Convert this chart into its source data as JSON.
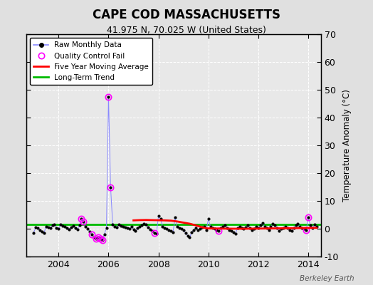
{
  "title": "CAPE COD MASSACHUSETTS",
  "subtitle": "41.975 N, 70.025 W (United States)",
  "ylabel_right": "Temperature Anomaly (°C)",
  "source_label": "Berkeley Earth",
  "xlim": [
    2002.7,
    2014.5
  ],
  "ylim": [
    -10,
    70
  ],
  "yticks": [
    -10,
    0,
    10,
    20,
    30,
    40,
    50,
    60,
    70
  ],
  "xticks": [
    2004,
    2006,
    2008,
    2010,
    2012,
    2014
  ],
  "bg_color": "#e0e0e0",
  "plot_bg": "#e8e8e8",
  "raw_color": "#8888ff",
  "raw_marker_color": "#000000",
  "qc_color": "#ff00ff",
  "moving_avg_color": "#ff0000",
  "trend_color": "#00bb00",
  "raw_monthly": [
    [
      2003.0,
      -1.5
    ],
    [
      2003.083,
      0.5
    ],
    [
      2003.167,
      0.3
    ],
    [
      2003.25,
      -0.5
    ],
    [
      2003.333,
      -1.0
    ],
    [
      2003.417,
      -1.5
    ],
    [
      2003.5,
      0.8
    ],
    [
      2003.583,
      0.5
    ],
    [
      2003.667,
      0.3
    ],
    [
      2003.75,
      1.2
    ],
    [
      2003.833,
      1.5
    ],
    [
      2003.917,
      0.3
    ],
    [
      2004.0,
      0.0
    ],
    [
      2004.083,
      1.5
    ],
    [
      2004.167,
      1.0
    ],
    [
      2004.25,
      0.8
    ],
    [
      2004.333,
      0.3
    ],
    [
      2004.417,
      -0.3
    ],
    [
      2004.5,
      0.5
    ],
    [
      2004.583,
      1.0
    ],
    [
      2004.667,
      0.3
    ],
    [
      2004.75,
      -0.3
    ],
    [
      2004.833,
      1.2
    ],
    [
      2004.917,
      3.5
    ],
    [
      2005.0,
      2.5
    ],
    [
      2005.083,
      0.8
    ],
    [
      2005.167,
      0.0
    ],
    [
      2005.25,
      -1.0
    ],
    [
      2005.333,
      -2.0
    ],
    [
      2005.417,
      -3.0
    ],
    [
      2005.5,
      -3.5
    ],
    [
      2005.583,
      -3.0
    ],
    [
      2005.667,
      -3.5
    ],
    [
      2005.75,
      -4.0
    ],
    [
      2005.833,
      -2.0
    ],
    [
      2005.917,
      0.3
    ],
    [
      2006.0,
      47.5
    ],
    [
      2006.083,
      15.0
    ],
    [
      2006.167,
      1.5
    ],
    [
      2006.25,
      0.8
    ],
    [
      2006.333,
      0.5
    ],
    [
      2006.417,
      1.5
    ],
    [
      2006.5,
      1.0
    ],
    [
      2006.583,
      0.8
    ],
    [
      2006.667,
      0.5
    ],
    [
      2006.75,
      0.3
    ],
    [
      2006.833,
      0.0
    ],
    [
      2006.917,
      0.8
    ],
    [
      2007.0,
      -0.3
    ],
    [
      2007.083,
      -0.8
    ],
    [
      2007.167,
      0.3
    ],
    [
      2007.25,
      0.8
    ],
    [
      2007.333,
      1.2
    ],
    [
      2007.417,
      1.8
    ],
    [
      2007.5,
      1.5
    ],
    [
      2007.583,
      0.5
    ],
    [
      2007.667,
      -0.3
    ],
    [
      2007.75,
      -0.8
    ],
    [
      2007.833,
      -1.5
    ],
    [
      2007.917,
      -1.8
    ],
    [
      2008.0,
      4.5
    ],
    [
      2008.083,
      3.5
    ],
    [
      2008.167,
      0.8
    ],
    [
      2008.25,
      0.3
    ],
    [
      2008.333,
      0.0
    ],
    [
      2008.417,
      -0.5
    ],
    [
      2008.5,
      -0.8
    ],
    [
      2008.583,
      -1.2
    ],
    [
      2008.667,
      4.0
    ],
    [
      2008.75,
      0.8
    ],
    [
      2008.833,
      0.3
    ],
    [
      2008.917,
      0.0
    ],
    [
      2009.0,
      -0.5
    ],
    [
      2009.083,
      -1.5
    ],
    [
      2009.167,
      -2.5
    ],
    [
      2009.25,
      -3.2
    ],
    [
      2009.333,
      -1.2
    ],
    [
      2009.417,
      -0.5
    ],
    [
      2009.5,
      0.3
    ],
    [
      2009.583,
      -0.5
    ],
    [
      2009.667,
      0.0
    ],
    [
      2009.75,
      0.5
    ],
    [
      2009.833,
      0.8
    ],
    [
      2009.917,
      -0.5
    ],
    [
      2010.0,
      3.5
    ],
    [
      2010.083,
      0.8
    ],
    [
      2010.167,
      0.3
    ],
    [
      2010.25,
      0.0
    ],
    [
      2010.333,
      -0.5
    ],
    [
      2010.417,
      -0.8
    ],
    [
      2010.5,
      0.3
    ],
    [
      2010.583,
      0.8
    ],
    [
      2010.667,
      1.2
    ],
    [
      2010.75,
      0.3
    ],
    [
      2010.833,
      -0.5
    ],
    [
      2010.917,
      -0.8
    ],
    [
      2011.0,
      -1.2
    ],
    [
      2011.083,
      -1.8
    ],
    [
      2011.167,
      0.3
    ],
    [
      2011.25,
      0.8
    ],
    [
      2011.333,
      0.3
    ],
    [
      2011.417,
      0.0
    ],
    [
      2011.5,
      0.5
    ],
    [
      2011.583,
      1.2
    ],
    [
      2011.667,
      0.3
    ],
    [
      2011.75,
      -0.5
    ],
    [
      2011.833,
      0.0
    ],
    [
      2011.917,
      0.8
    ],
    [
      2012.0,
      0.3
    ],
    [
      2012.083,
      1.2
    ],
    [
      2012.167,
      2.0
    ],
    [
      2012.25,
      0.8
    ],
    [
      2012.333,
      0.3
    ],
    [
      2012.417,
      -0.5
    ],
    [
      2012.5,
      0.8
    ],
    [
      2012.583,
      1.8
    ],
    [
      2012.667,
      1.2
    ],
    [
      2012.75,
      0.3
    ],
    [
      2012.833,
      -0.8
    ],
    [
      2012.917,
      0.0
    ],
    [
      2013.0,
      0.3
    ],
    [
      2013.083,
      0.8
    ],
    [
      2013.167,
      0.3
    ],
    [
      2013.25,
      -0.5
    ],
    [
      2013.333,
      -0.8
    ],
    [
      2013.417,
      0.3
    ],
    [
      2013.5,
      1.2
    ],
    [
      2013.583,
      1.8
    ],
    [
      2013.667,
      0.8
    ],
    [
      2013.75,
      0.3
    ],
    [
      2013.833,
      0.0
    ],
    [
      2013.917,
      -0.5
    ],
    [
      2014.0,
      4.0
    ],
    [
      2014.083,
      1.2
    ],
    [
      2014.167,
      0.3
    ],
    [
      2014.25,
      1.5
    ],
    [
      2014.333,
      0.8
    ]
  ],
  "qc_fail_points": [
    [
      2004.917,
      3.5
    ],
    [
      2005.0,
      2.5
    ],
    [
      2005.333,
      -2.0
    ],
    [
      2005.5,
      -3.5
    ],
    [
      2005.583,
      -3.0
    ],
    [
      2005.667,
      -3.5
    ],
    [
      2005.75,
      -4.0
    ],
    [
      2006.0,
      47.5
    ],
    [
      2006.083,
      15.0
    ],
    [
      2007.833,
      -1.5
    ],
    [
      2010.417,
      -0.8
    ],
    [
      2013.917,
      -0.5
    ],
    [
      2014.0,
      4.0
    ]
  ],
  "moving_avg": [
    [
      2007.0,
      3.0
    ],
    [
      2007.25,
      3.1
    ],
    [
      2007.5,
      3.15
    ],
    [
      2007.75,
      3.1
    ],
    [
      2008.0,
      3.05
    ],
    [
      2008.25,
      3.0
    ],
    [
      2008.5,
      2.9
    ],
    [
      2008.75,
      2.6
    ],
    [
      2009.0,
      2.2
    ],
    [
      2009.25,
      1.8
    ],
    [
      2009.5,
      1.2
    ],
    [
      2009.75,
      0.5
    ],
    [
      2009.917,
      0.15
    ],
    [
      2010.0,
      0.1
    ],
    [
      2010.5,
      0.05
    ],
    [
      2011.0,
      0.0
    ],
    [
      2011.5,
      0.0
    ],
    [
      2012.0,
      0.05
    ],
    [
      2012.5,
      0.1
    ],
    [
      2013.0,
      0.15
    ],
    [
      2013.5,
      0.2
    ],
    [
      2014.0,
      0.3
    ],
    [
      2014.333,
      0.3
    ]
  ],
  "trend_y": 1.5
}
